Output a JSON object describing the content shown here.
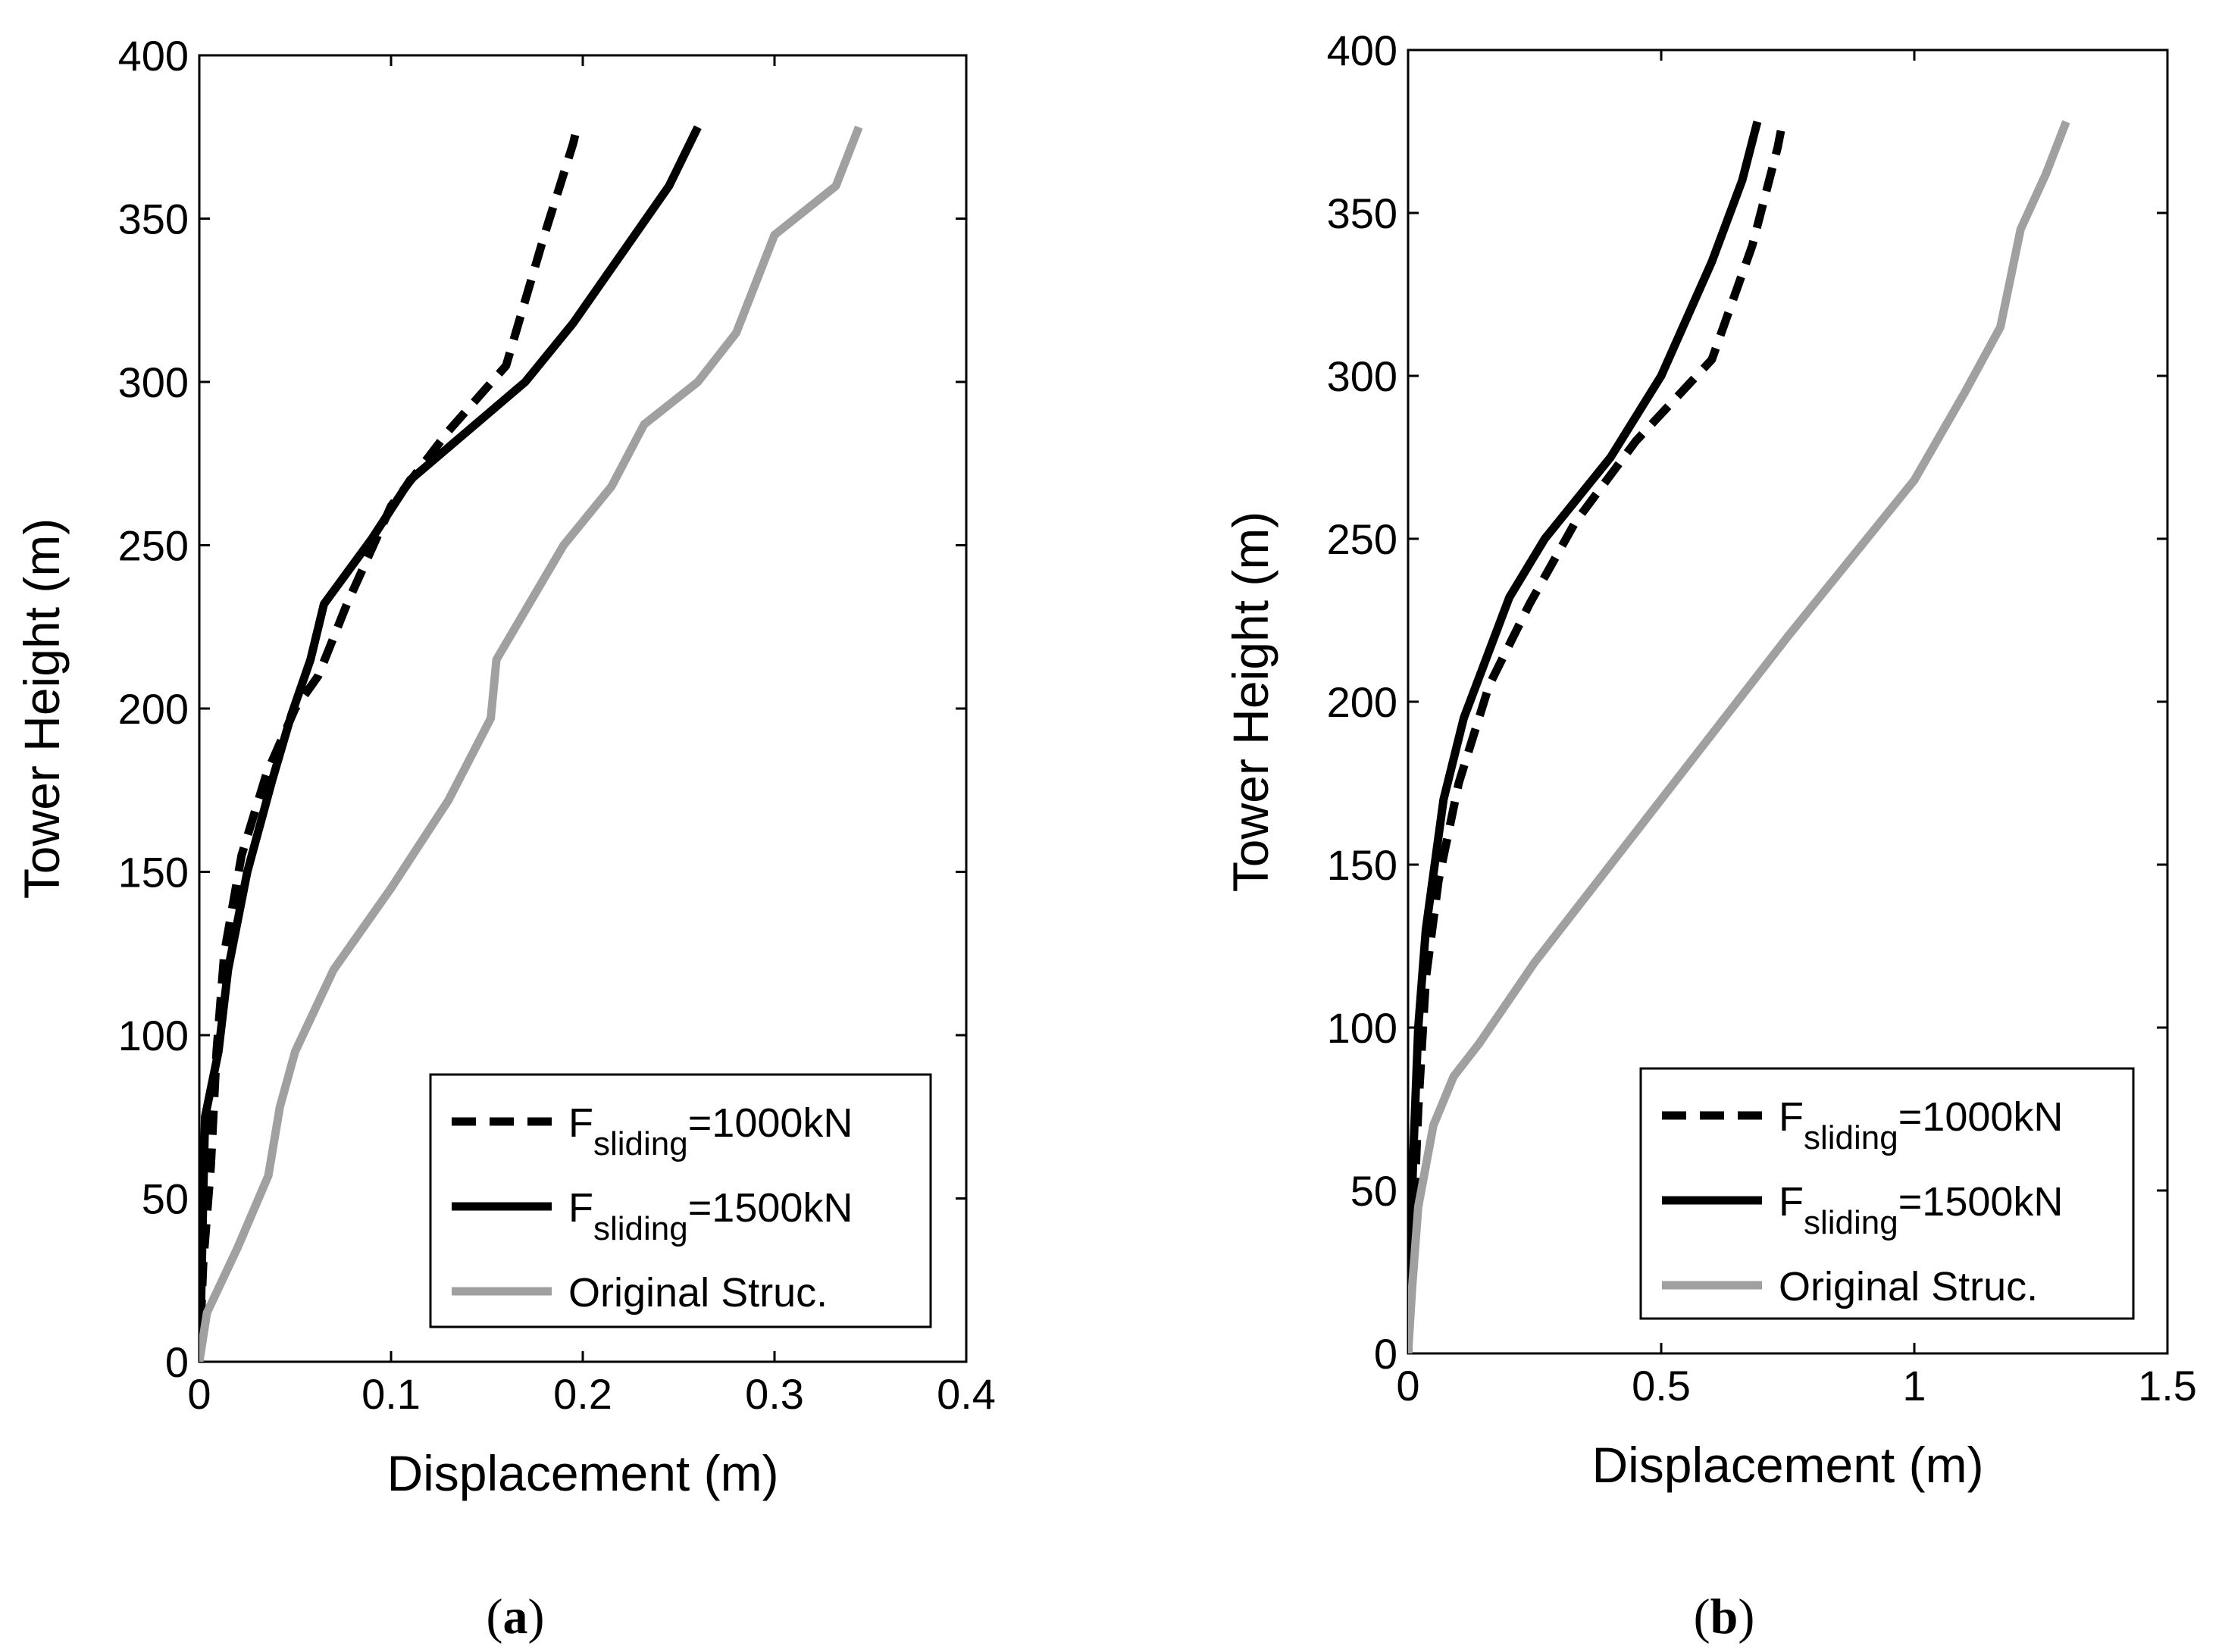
{
  "chart_data": [
    {
      "type": "line",
      "panel_label": "a",
      "xlabel": "Displacement (m)",
      "ylabel": "Tower Height (m)",
      "xlim": [
        0,
        0.4
      ],
      "ylim": [
        0,
        400
      ],
      "xticks": [
        0,
        0.1,
        0.2,
        0.3,
        0.4
      ],
      "xtick_labels": [
        "0",
        "0.1",
        "0.2",
        "0.3",
        "0.4"
      ],
      "yticks": [
        0,
        50,
        100,
        150,
        200,
        250,
        300,
        350,
        400
      ],
      "ytick_labels": [
        "0",
        "50",
        "100",
        "150",
        "200",
        "250",
        "300",
        "350",
        "400"
      ],
      "legend_position": "bottom-right",
      "series": [
        {
          "name": "F_sliding=1000kN",
          "legend_main": "F",
          "legend_sub": "sliding",
          "legend_tail": "=1000kN",
          "color": "#000000",
          "style": "dashed",
          "points": [
            [
              0,
              0
            ],
            [
              0.002,
              30
            ],
            [
              0.006,
              60
            ],
            [
              0.009,
              95
            ],
            [
              0.013,
              125
            ],
            [
              0.022,
              155
            ],
            [
              0.035,
              180
            ],
            [
              0.05,
              200
            ],
            [
              0.062,
              210
            ],
            [
              0.077,
              232
            ],
            [
              0.1,
              262
            ],
            [
              0.13,
              285
            ],
            [
              0.16,
              305
            ],
            [
              0.18,
              345
            ],
            [
              0.195,
              373
            ],
            [
              0.197,
              378
            ]
          ]
        },
        {
          "name": "F_sliding=1500kN",
          "legend_main": "F",
          "legend_sub": "sliding",
          "legend_tail": "=1500kN",
          "color": "#000000",
          "style": "solid",
          "points": [
            [
              0,
              0
            ],
            [
              0.001,
              20
            ],
            [
              0.002,
              50
            ],
            [
              0.003,
              75
            ],
            [
              0.01,
              95
            ],
            [
              0.015,
              120
            ],
            [
              0.025,
              150
            ],
            [
              0.038,
              178
            ],
            [
              0.048,
              198
            ],
            [
              0.058,
              215
            ],
            [
              0.065,
              232
            ],
            [
              0.09,
              252
            ],
            [
              0.11,
              270
            ],
            [
              0.17,
              300
            ],
            [
              0.195,
              318
            ],
            [
              0.245,
              360
            ],
            [
              0.26,
              378
            ]
          ]
        },
        {
          "name": "Original Struc.",
          "legend_main": "Original Struc.",
          "legend_sub": "",
          "legend_tail": "",
          "color": "#a0a0a0",
          "style": "solid",
          "points": [
            [
              0,
              0
            ],
            [
              0.004,
              15
            ],
            [
              0.02,
              35
            ],
            [
              0.036,
              57
            ],
            [
              0.042,
              78
            ],
            [
              0.05,
              95
            ],
            [
              0.07,
              120
            ],
            [
              0.1,
              145
            ],
            [
              0.13,
              172
            ],
            [
              0.152,
              197
            ],
            [
              0.155,
              215
            ],
            [
              0.19,
              250
            ],
            [
              0.215,
              268
            ],
            [
              0.232,
              287
            ],
            [
              0.26,
              300
            ],
            [
              0.28,
              315
            ],
            [
              0.3,
              345
            ],
            [
              0.332,
              360
            ],
            [
              0.344,
              378
            ]
          ]
        }
      ]
    },
    {
      "type": "line",
      "panel_label": "b",
      "xlabel": "Displacement (m)",
      "ylabel": "Tower Height (m)",
      "xlim": [
        0,
        1.5
      ],
      "ylim": [
        0,
        400
      ],
      "xticks": [
        0,
        0.5,
        1,
        1.5
      ],
      "xtick_labels": [
        "0",
        "0.5",
        "1",
        "1.5"
      ],
      "yticks": [
        0,
        50,
        100,
        150,
        200,
        250,
        300,
        350,
        400
      ],
      "ytick_labels": [
        "0",
        "50",
        "100",
        "150",
        "200",
        "250",
        "300",
        "350",
        "400"
      ],
      "legend_position": "bottom-right",
      "series": [
        {
          "name": "F_sliding=1000kN",
          "legend_main": "F",
          "legend_sub": "sliding",
          "legend_tail": "=1000kN",
          "color": "#000000",
          "style": "dashed",
          "points": [
            [
              0,
              0
            ],
            [
              0.008,
              30
            ],
            [
              0.02,
              75
            ],
            [
              0.035,
              115
            ],
            [
              0.06,
              145
            ],
            [
              0.1,
              175
            ],
            [
              0.16,
              205
            ],
            [
              0.24,
              230
            ],
            [
              0.33,
              255
            ],
            [
              0.45,
              280
            ],
            [
              0.6,
              305
            ],
            [
              0.68,
              340
            ],
            [
              0.73,
              370
            ],
            [
              0.74,
              378
            ]
          ]
        },
        {
          "name": "F_sliding=1500kN",
          "legend_main": "F",
          "legend_sub": "sliding",
          "legend_tail": "=1500kN",
          "color": "#000000",
          "style": "solid",
          "points": [
            [
              0,
              0
            ],
            [
              0.003,
              20
            ],
            [
              0.01,
              60
            ],
            [
              0.02,
              100
            ],
            [
              0.035,
              130
            ],
            [
              0.07,
              170
            ],
            [
              0.11,
              195
            ],
            [
              0.2,
              232
            ],
            [
              0.27,
              250
            ],
            [
              0.4,
              275
            ],
            [
              0.5,
              300
            ],
            [
              0.6,
              335
            ],
            [
              0.66,
              360
            ],
            [
              0.69,
              378
            ]
          ]
        },
        {
          "name": "Original Struc.",
          "legend_main": "Original Struc.",
          "legend_sub": "",
          "legend_tail": "",
          "color": "#a0a0a0",
          "style": "solid",
          "points": [
            [
              0,
              0
            ],
            [
              0.008,
              20
            ],
            [
              0.02,
              45
            ],
            [
              0.05,
              70
            ],
            [
              0.09,
              85
            ],
            [
              0.14,
              95
            ],
            [
              0.25,
              120
            ],
            [
              0.5,
              170
            ],
            [
              0.75,
              220
            ],
            [
              1.0,
              268
            ],
            [
              1.1,
              295
            ],
            [
              1.17,
              315
            ],
            [
              1.21,
              345
            ],
            [
              1.26,
              362
            ],
            [
              1.3,
              378
            ]
          ]
        }
      ]
    }
  ]
}
